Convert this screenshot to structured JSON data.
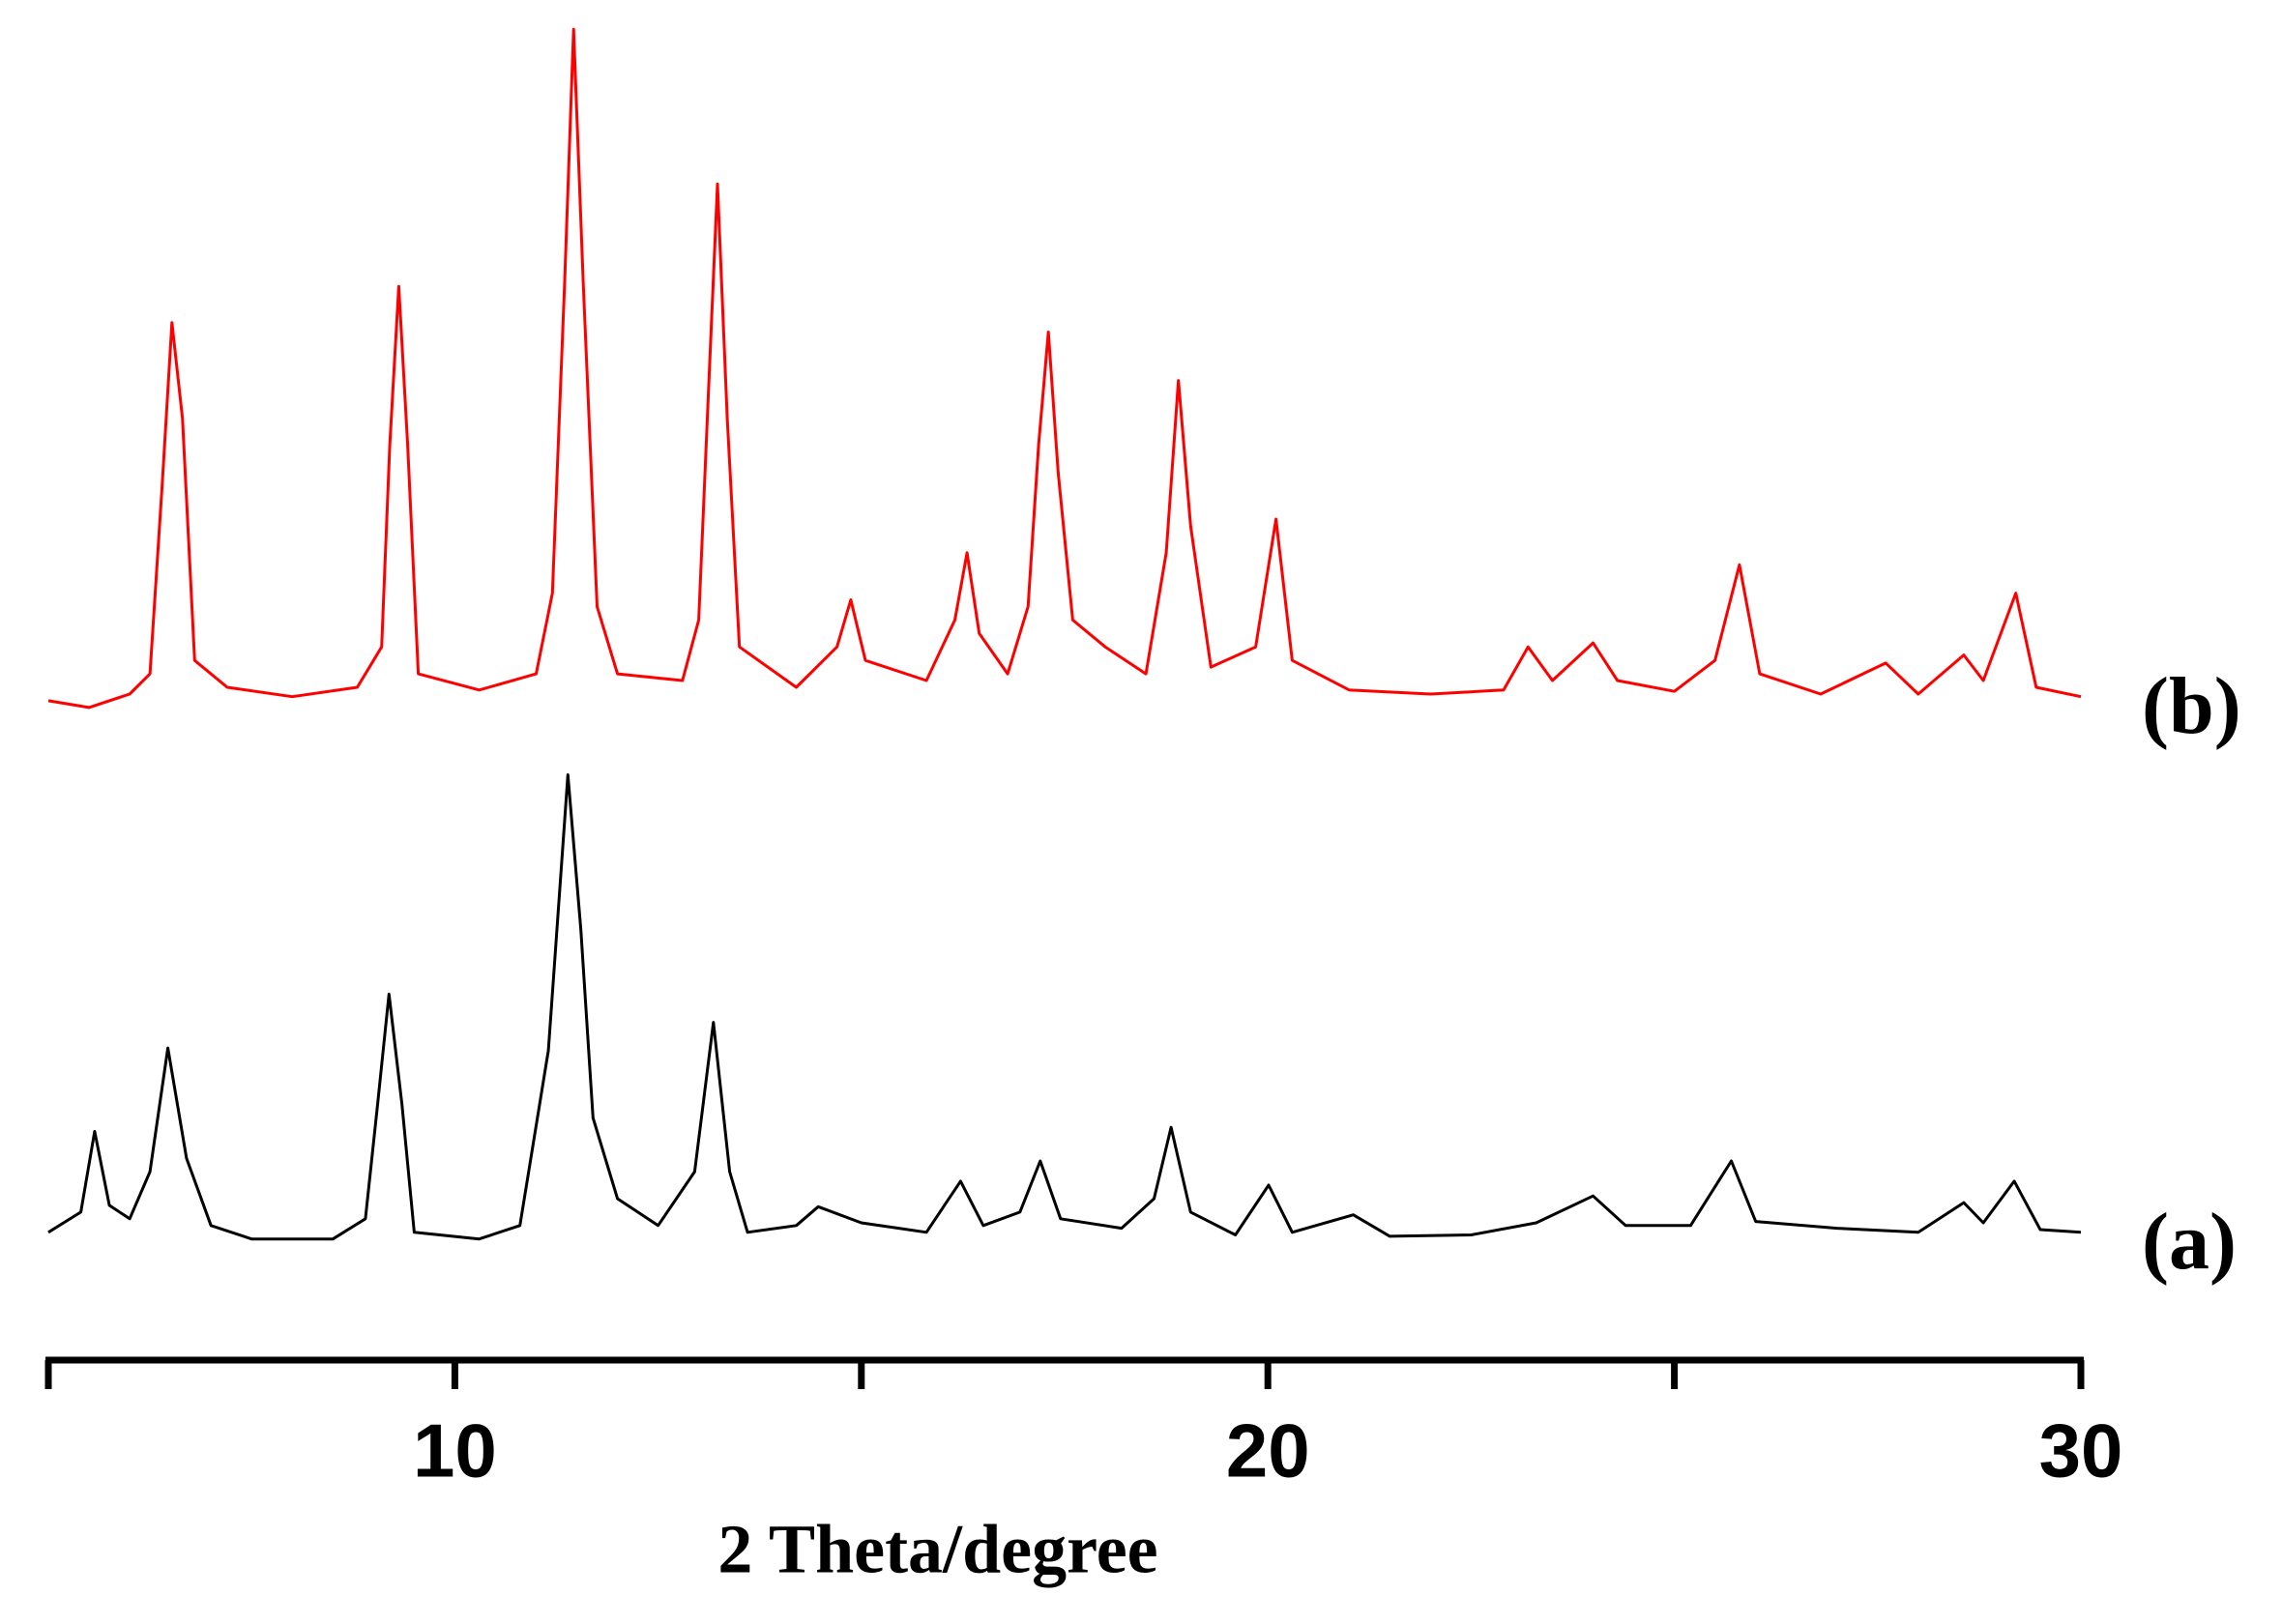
{
  "chart_data": {
    "type": "line",
    "x_label": "2 Theta/degree",
    "xlim": [
      5,
      30
    ],
    "xticks": [
      10,
      20,
      30
    ],
    "minor_xticks": [
      5,
      15,
      25
    ],
    "ylim": [
      0,
      100
    ],
    "series": [
      {
        "name": "(b)",
        "color": "#ff0000",
        "x": [
          5.0,
          5.5,
          6.0,
          6.25,
          6.4,
          6.52,
          6.65,
          6.8,
          7.2,
          8.0,
          8.8,
          9.1,
          9.2,
          9.31,
          9.42,
          9.55,
          10.3,
          11.0,
          11.2,
          11.35,
          11.46,
          11.58,
          11.75,
          12.0,
          12.8,
          13.0,
          13.12,
          13.23,
          13.35,
          13.5,
          14.2,
          14.7,
          14.87,
          15.05,
          15.8,
          16.15,
          16.3,
          16.45,
          16.8,
          17.05,
          17.18,
          17.3,
          17.42,
          17.6,
          18.0,
          18.5,
          18.75,
          18.9,
          19.05,
          19.3,
          19.85,
          20.1,
          20.3,
          21.0,
          22.0,
          22.9,
          23.2,
          23.5,
          24.0,
          24.3,
          25.0,
          25.5,
          25.8,
          26.05,
          26.8,
          27.6,
          28.0,
          28.56,
          28.8,
          29.2,
          29.45,
          30.0
        ],
        "values": [
          49,
          48.5,
          49.5,
          51,
          65,
          77.1,
          70,
          52,
          50,
          49.3,
          50,
          53,
          68,
          79.8,
          68,
          51,
          49.8,
          51,
          57,
          80,
          98.9,
          80,
          56,
          51,
          50.5,
          55,
          72,
          87.4,
          70,
          53,
          50,
          53,
          56.5,
          52,
          50.5,
          55,
          60,
          54,
          51,
          56,
          68,
          76.4,
          66,
          55,
          53,
          51,
          60,
          72.8,
          62,
          51.5,
          53,
          62.5,
          52,
          49.8,
          49.5,
          49.8,
          53,
          50.5,
          53.3,
          50.5,
          49.7,
          52,
          59.1,
          51,
          49.5,
          51.8,
          49.5,
          52.4,
          50.5,
          57,
          50,
          49.3
        ]
      },
      {
        "name": "(a)",
        "color": "#000000",
        "x": [
          5.0,
          5.4,
          5.57,
          5.75,
          6.0,
          6.25,
          6.47,
          6.7,
          7.0,
          7.5,
          8.5,
          8.9,
          9.05,
          9.19,
          9.35,
          9.5,
          10.3,
          10.8,
          11.15,
          11.39,
          11.55,
          11.7,
          12.0,
          12.5,
          12.95,
          13.18,
          13.38,
          13.6,
          14.2,
          14.47,
          15.0,
          15.8,
          16.22,
          16.5,
          16.95,
          17.2,
          17.45,
          18.2,
          18.6,
          18.81,
          19.05,
          19.6,
          20.01,
          20.3,
          21.05,
          21.5,
          22.5,
          23.3,
          24.0,
          24.4,
          25.2,
          25.7,
          26.0,
          27.0,
          28.0,
          28.56,
          28.8,
          29.18,
          29.5,
          30.0
        ],
        "values": [
          9.5,
          11,
          17,
          11.5,
          10.5,
          14,
          23.2,
          15,
          10,
          9,
          9,
          10.5,
          19,
          27.2,
          19,
          9.5,
          9,
          10,
          23,
          43.5,
          32,
          18,
          12,
          10,
          14,
          25.1,
          14,
          9.5,
          10,
          11.4,
          10.2,
          9.5,
          13.3,
          10,
          11,
          14.8,
          10.5,
          9.8,
          12,
          17.3,
          11,
          9.3,
          13,
          9.5,
          10.8,
          9.2,
          9.3,
          10.2,
          12.2,
          10,
          10,
          14.8,
          10.3,
          9.8,
          9.5,
          11.7,
          10.2,
          13.3,
          9.7,
          9.5
        ]
      }
    ]
  }
}
